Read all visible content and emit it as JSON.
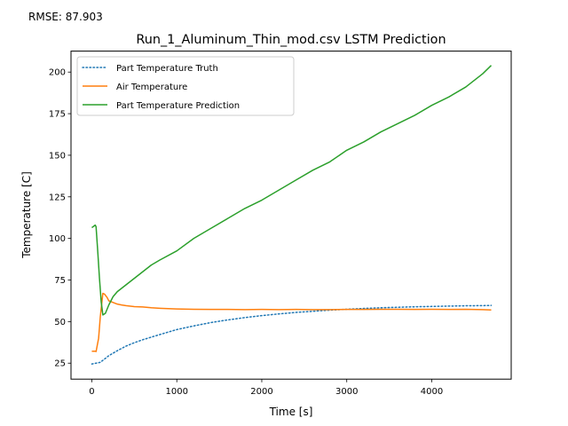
{
  "annotation": "RMSE: 87.903",
  "chart_data": {
    "type": "line",
    "title": "Run_1_Aluminum_Thin_mod.csv LSTM Prediction",
    "xlabel": "Time [s]",
    "ylabel": "Temperature [C]",
    "xlim": [
      -245,
      4935
    ],
    "ylim": [
      15.4,
      212.6
    ],
    "xticks": [
      0,
      1000,
      2000,
      3000,
      4000
    ],
    "yticks": [
      25,
      50,
      75,
      100,
      125,
      150,
      175,
      200
    ],
    "grid": false,
    "legend_position": "upper-left",
    "series": [
      {
        "name": "Part Temperature Truth",
        "color": "#1f77b4",
        "style": "dotted",
        "x": [
          0,
          100,
          200,
          300,
          400,
          500,
          600,
          800,
          1000,
          1200,
          1400,
          1600,
          1800,
          2000,
          2200,
          2400,
          2600,
          2800,
          3000,
          3200,
          3400,
          3600,
          3800,
          4000,
          4200,
          4400,
          4600,
          4700
        ],
        "y": [
          24.5,
          25.5,
          29.5,
          32.5,
          35.2,
          37.3,
          39.1,
          42.2,
          45.2,
          47.4,
          49.4,
          51.0,
          52.4,
          53.6,
          54.6,
          55.5,
          56.2,
          56.9,
          57.4,
          57.9,
          58.3,
          58.6,
          58.9,
          59.1,
          59.3,
          59.5,
          59.6,
          59.7
        ]
      },
      {
        "name": "Air Temperature",
        "color": "#ff7f0e",
        "style": "solid",
        "x": [
          0,
          40,
          50,
          80,
          100,
          130,
          150,
          180,
          200,
          250,
          300,
          350,
          400,
          500,
          600,
          700,
          800,
          1000,
          1200,
          1400,
          1600,
          1800,
          2000,
          2200,
          2400,
          2600,
          2800,
          3000,
          3200,
          3400,
          3600,
          3800,
          4000,
          4200,
          4400,
          4600,
          4700
        ],
        "y": [
          32.2,
          32.2,
          32,
          40,
          53,
          67,
          66.5,
          64.5,
          62.5,
          61.5,
          60.5,
          60,
          59.6,
          59,
          58.8,
          58.3,
          58.0,
          57.6,
          57.4,
          57.3,
          57.3,
          57.2,
          57.3,
          57.2,
          57.3,
          57.2,
          57.2,
          57.3,
          57.3,
          57.4,
          57.4,
          57.3,
          57.4,
          57.3,
          57.4,
          57.2,
          57.0
        ]
      },
      {
        "name": "Part Temperature Prediction",
        "color": "#2ca02c",
        "style": "solid",
        "x": [
          0,
          40,
          50,
          70,
          90,
          110,
          130,
          160,
          200,
          250,
          300,
          350,
          400,
          500,
          600,
          700,
          800,
          1000,
          1200,
          1400,
          1600,
          1800,
          2000,
          2200,
          2400,
          2600,
          2800,
          3000,
          3200,
          3400,
          3600,
          3800,
          4000,
          4200,
          4400,
          4600,
          4700
        ],
        "y": [
          106.5,
          108,
          107,
          92,
          76,
          62,
          54,
          55,
          60,
          65,
          68,
          70,
          72,
          76,
          80,
          84,
          87,
          92.5,
          100,
          106,
          112,
          118,
          123,
          129,
          135,
          141,
          146,
          153,
          158,
          164,
          169,
          174,
          180,
          185,
          191,
          199,
          204
        ]
      }
    ]
  }
}
